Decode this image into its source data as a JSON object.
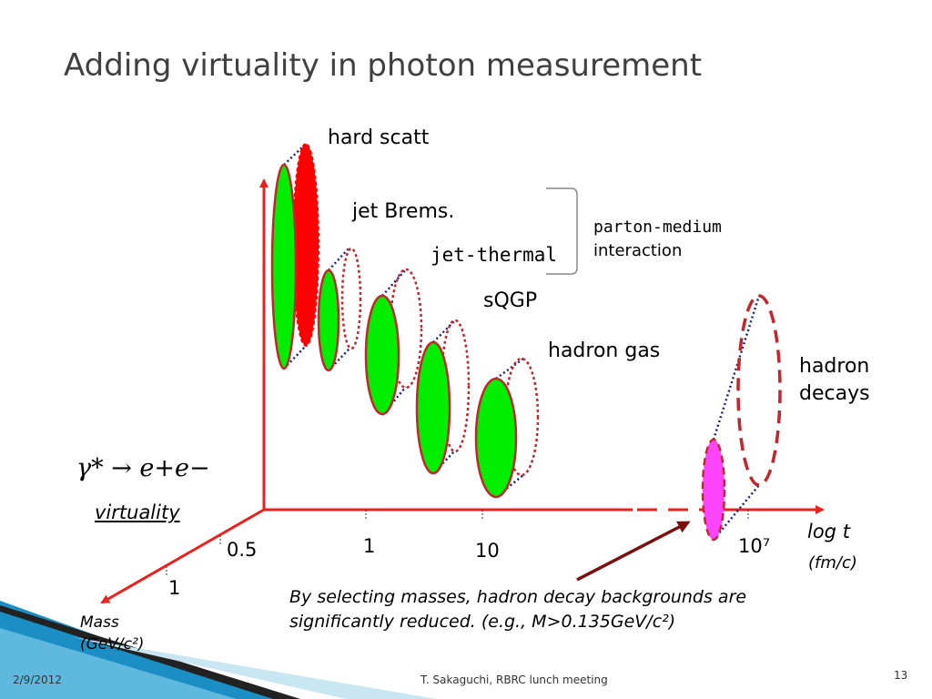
{
  "slide": {
    "title": "Adding virtuality in photon measurement",
    "labels": {
      "hard_scatt": "hard scatt",
      "jet_brems": "jet Brems.",
      "jet_thermal": "jet-thermal",
      "sqgp": "sQGP",
      "hadron_gas": "hadron gas",
      "parton_medium_line1": "parton-medium",
      "parton_medium_line2": "interaction",
      "hadron_decays_line1": "hadron",
      "hadron_decays_line2": "decays",
      "process_formula": "γ* → e+e−",
      "virtuality": "virtuality",
      "log_t": "log t",
      "fm_c": "(fm/c)",
      "mass_line1": "Mass",
      "mass_line2": "(GeV/c²)"
    },
    "ticks": {
      "t_1": "1",
      "t_10": "10",
      "t_1e7": "10⁷",
      "m_05": "0.5",
      "m_1": "1"
    },
    "note_line1": "By selecting masses, hadron decay backgrounds are",
    "note_line2": "significantly reduced. (e.g., M>0.135GeV/c²)",
    "colors": {
      "axis": "#e8231f",
      "green_fill": "#00ee00",
      "red_fill": "#ff0000",
      "magenta_fill": "#ff44ff",
      "ellipse_outline": "#c0282d",
      "dotted_connector": "#1a237e",
      "arrow": "#7b0f0f",
      "title": "#404040",
      "band_blue": "#0b7fb0"
    }
  },
  "footer": {
    "date": "2/9/2012",
    "presenter": "T. Sakaguchi, RBRC lunch meeting",
    "page_number": "13"
  }
}
